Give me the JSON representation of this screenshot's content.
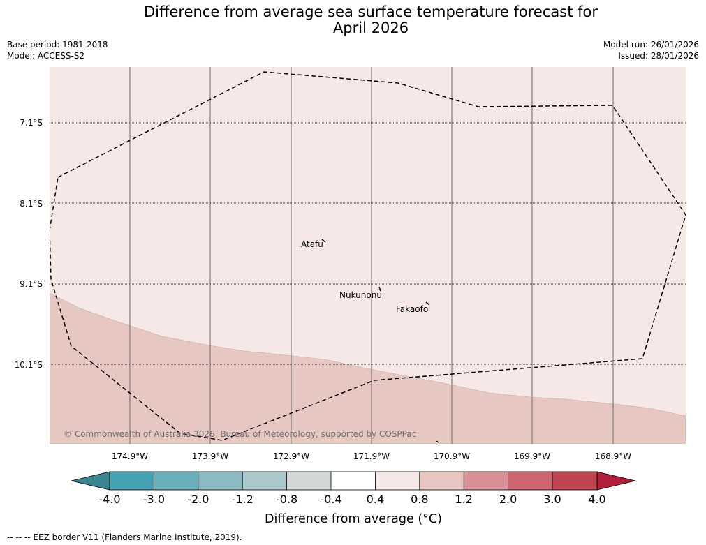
{
  "title": {
    "line1": "Difference from average sea surface temperature forecast for",
    "line2": "April 2026"
  },
  "meta": {
    "base_period": "Base period: 1981-2018",
    "model": "Model: ACCESS-S2",
    "model_run": "Model run: 26/01/2026",
    "issued": "Issued: 28/01/2026"
  },
  "map": {
    "latitude_labels": [
      "7.1°S",
      "8.1°S",
      "9.1°S",
      "10.1°S"
    ],
    "longitude_labels": [
      "174.9°W",
      "173.9°W",
      "172.9°W",
      "171.9°W",
      "170.9°W",
      "169.9°W",
      "168.9°W"
    ],
    "places": [
      {
        "name": "Atafu"
      },
      {
        "name": "Nukunonu"
      },
      {
        "name": "Fakaofo"
      }
    ],
    "copyright": "© Commonwealth of Australia 2026, Bureau of Meteorology, supported by COSPPac",
    "zone_fill_upper": "#f5e8e6",
    "zone_fill_lower": "#e7c7c2"
  },
  "colorbar": {
    "title": "Difference from average (°C)",
    "tick_labels": [
      "-4.0",
      "-3.0",
      "-2.0",
      "-1.2",
      "-0.8",
      "-0.4",
      "0.4",
      "0.8",
      "1.2",
      "2.0",
      "3.0",
      "4.0"
    ],
    "segment_colors": [
      "#44a2b2",
      "#6aafbc",
      "#8cbac3",
      "#aac8cc",
      "#d2d7d8",
      "#ffffff",
      "#f6e8e6",
      "#e8c5c1",
      "#d88f96",
      "#cd6571",
      "#c04553"
    ],
    "extend_low_color": "#3b8590",
    "extend_high_color": "#b0203a"
  },
  "legend": {
    "eez_label": "--  --  -- EEZ border V11 (Flanders Marine Institute, 2019)."
  }
}
